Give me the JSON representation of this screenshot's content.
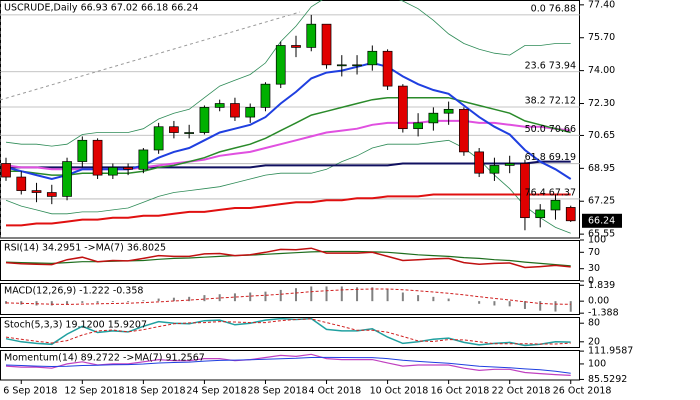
{
  "chart_data": [
    {
      "type": "candlestick",
      "title": "USCRUDE,Daily 66.93 67.02 66.18 66.24",
      "categories": [
        null,
        "6 Sep 2018",
        null,
        null,
        null,
        "12 Sep 2018",
        null,
        null,
        null,
        "18 Sep 2018",
        null,
        null,
        null,
        "24 Sep 2018",
        null,
        null,
        null,
        "28 Sep 2018",
        null,
        null,
        null,
        "4 Oct 2018",
        null,
        null,
        null,
        "10 Oct 2018",
        null,
        null,
        null,
        "16 Oct 2018",
        null,
        null,
        null,
        "22 Oct 2018",
        null,
        null,
        null,
        "26 Oct 2018"
      ],
      "open": [
        69.2,
        68.5,
        67.8,
        67.7,
        67.5,
        69.3,
        70.4,
        68.6,
        69.0,
        68.9,
        69.9,
        71.1,
        70.8,
        70.8,
        72.1,
        72.3,
        71.6,
        72.1,
        73.3,
        75.3,
        75.2,
        76.4,
        74.3,
        74.3,
        74.3,
        75.0,
        73.2,
        71.0,
        71.3,
        71.8,
        72.0,
        69.8,
        68.7,
        69.1,
        69.2,
        66.4,
        66.8,
        66.93
      ],
      "high": [
        69.5,
        68.8,
        68.2,
        68.1,
        69.5,
        70.6,
        70.5,
        69.2,
        69.2,
        70.0,
        71.3,
        71.4,
        71.2,
        72.2,
        72.5,
        72.6,
        72.3,
        73.4,
        75.5,
        75.8,
        76.88,
        76.3,
        74.8,
        74.8,
        75.3,
        75.1,
        73.3,
        71.8,
        72.1,
        72.4,
        72.1,
        70.0,
        69.5,
        69.6,
        69.4,
        67.1,
        67.6,
        67.02
      ],
      "low": [
        68.3,
        67.6,
        67.2,
        67.1,
        67.3,
        69.0,
        68.4,
        68.4,
        68.6,
        68.7,
        69.7,
        70.5,
        70.5,
        70.7,
        71.9,
        71.4,
        71.3,
        71.9,
        73.1,
        74.7,
        75.0,
        74.1,
        73.7,
        73.8,
        74.0,
        73.0,
        70.8,
        70.6,
        70.9,
        71.2,
        69.6,
        68.5,
        68.3,
        68.7,
        65.75,
        65.9,
        66.3,
        66.18
      ],
      "close": [
        68.5,
        67.8,
        67.7,
        67.5,
        69.3,
        70.4,
        68.6,
        69.0,
        68.9,
        69.9,
        71.1,
        70.8,
        70.8,
        72.1,
        72.3,
        71.6,
        72.1,
        73.3,
        75.3,
        75.2,
        76.4,
        74.3,
        74.3,
        74.3,
        75.0,
        73.2,
        71.0,
        71.3,
        71.8,
        72.0,
        69.8,
        68.7,
        69.1,
        69.2,
        66.4,
        66.8,
        67.3,
        66.24
      ],
      "up_color": "#00b000",
      "down_color": "#e00000",
      "series": [
        {
          "color": "#2e8b57",
          "width": 0.8,
          "values": [
            70.3,
            70.2,
            70.2,
            70.1,
            70.2,
            70.7,
            70.8,
            70.8,
            70.8,
            71.0,
            71.5,
            71.8,
            72.0,
            72.6,
            73.2,
            73.5,
            73.8,
            74.4,
            75.5,
            76.3,
            77.3,
            77.8,
            78.0,
            78.0,
            78.0,
            77.9,
            77.6,
            77.2,
            76.6,
            75.9,
            75.4,
            75.1,
            74.9,
            74.8,
            75.3,
            75.3,
            75.4,
            75.4
          ]
        },
        {
          "color": "#2e8b57",
          "width": 0.8,
          "values": [
            67.3,
            67.0,
            66.8,
            66.6,
            66.6,
            66.7,
            66.7,
            66.8,
            66.9,
            67.2,
            67.5,
            67.7,
            67.8,
            67.9,
            68.0,
            68.2,
            68.4,
            68.6,
            68.7,
            68.7,
            68.7,
            68.9,
            69.3,
            69.6,
            70.0,
            70.2,
            70.2,
            70.2,
            70.3,
            70.4,
            70.0,
            69.4,
            68.6,
            67.9,
            67.0,
            66.4,
            65.9,
            65.6
          ]
        },
        {
          "color": "#e01010",
          "width": 2,
          "values": [
            66.0,
            66.0,
            66.1,
            66.1,
            66.2,
            66.3,
            66.3,
            66.4,
            66.4,
            66.5,
            66.5,
            66.6,
            66.7,
            66.7,
            66.8,
            66.9,
            66.9,
            67.0,
            67.1,
            67.2,
            67.2,
            67.3,
            67.3,
            67.4,
            67.4,
            67.5,
            67.5,
            67.5,
            67.6,
            67.6,
            67.6,
            67.6,
            67.6,
            67.6,
            67.6,
            67.6,
            67.6,
            67.6
          ]
        },
        {
          "color": "#101060",
          "width": 2,
          "values": [
            69.0,
            69.0,
            69.0,
            69.0,
            69.0,
            69.0,
            69.0,
            69.0,
            69.0,
            69.0,
            69.0,
            69.0,
            69.0,
            69.0,
            69.0,
            69.0,
            69.0,
            69.1,
            69.1,
            69.1,
            69.1,
            69.1,
            69.1,
            69.1,
            69.1,
            69.1,
            69.2,
            69.2,
            69.2,
            69.2,
            69.2,
            69.2,
            69.2,
            69.2,
            69.2,
            69.3,
            69.3,
            69.3
          ]
        },
        {
          "color": "#e050e0",
          "width": 2,
          "values": [
            69.1,
            69.0,
            69.0,
            68.9,
            68.9,
            68.9,
            68.9,
            68.9,
            68.9,
            69.0,
            69.1,
            69.2,
            69.3,
            69.4,
            69.6,
            69.7,
            69.8,
            70.0,
            70.2,
            70.4,
            70.6,
            70.8,
            70.9,
            71.0,
            71.2,
            71.3,
            71.3,
            71.3,
            71.4,
            71.4,
            71.4,
            71.3,
            71.3,
            71.2,
            71.1,
            71.1,
            71.0,
            70.9
          ]
        },
        {
          "color": "#2a8a2a",
          "width": 1.5,
          "values": [
            68.8,
            68.8,
            68.7,
            68.6,
            68.6,
            68.7,
            68.7,
            68.7,
            68.7,
            68.8,
            69.0,
            69.1,
            69.3,
            69.5,
            69.8,
            70.0,
            70.2,
            70.5,
            70.9,
            71.3,
            71.7,
            71.9,
            72.1,
            72.3,
            72.5,
            72.6,
            72.6,
            72.6,
            72.6,
            72.6,
            72.4,
            72.2,
            72.0,
            71.8,
            71.4,
            71.2,
            71.0,
            70.8
          ]
        },
        {
          "color": "#1f3fe0",
          "width": 2,
          "values": [
            69.0,
            68.8,
            68.6,
            68.4,
            68.6,
            68.9,
            68.9,
            68.9,
            68.9,
            69.1,
            69.5,
            69.8,
            70.0,
            70.4,
            70.8,
            71.0,
            71.2,
            71.6,
            72.3,
            72.9,
            73.6,
            73.9,
            74.0,
            74.2,
            74.4,
            74.2,
            73.7,
            73.3,
            73.0,
            72.8,
            72.2,
            71.6,
            71.1,
            70.7,
            69.9,
            69.3,
            68.9,
            68.4
          ]
        }
      ],
      "fib_levels": [
        {
          "label": "0.0 76.88",
          "value": 76.88
        },
        {
          "label": "23.6 73.94",
          "value": 73.94
        },
        {
          "label": "38.2 72.12",
          "value": 72.12
        },
        {
          "label": "50.0 70.66",
          "value": 70.66
        },
        {
          "label": "61.8 69.19",
          "value": 69.19
        },
        {
          "label": "76.4 67.37",
          "value": 67.37
        }
      ],
      "last_price": 66.24,
      "ylim": [
        65.35,
        77.65
      ],
      "yticks": [
        {
          "value": 77.4,
          "label": "77.40"
        },
        {
          "value": 75.7,
          "label": "75.70"
        },
        {
          "value": 74,
          "label": "74.00"
        },
        {
          "value": 72.3,
          "label": "72.30"
        },
        70.65,
        68.95,
        67.25,
        65.55
      ]
    },
    {
      "type": "line",
      "title": "RSI(14) 34.2951 ->MA(7) 36.8025",
      "ylim": [
        0,
        100
      ],
      "yticks": [
        100,
        70,
        30,
        0
      ],
      "series": [
        {
          "color": "#1e6e1e",
          "width": 1.2,
          "values": [
            46,
            45,
            44,
            43,
            45,
            47,
            47,
            48,
            49,
            50,
            53,
            55,
            56,
            58,
            60,
            62,
            63,
            65,
            67,
            69,
            71,
            72,
            72,
            72,
            71,
            70,
            67,
            64,
            62,
            60,
            57,
            55,
            52,
            50,
            46,
            43,
            40,
            36.8
          ]
        },
        {
          "color": "#c01010",
          "width": 1.5,
          "values": [
            45,
            42,
            41,
            40,
            52,
            58,
            47,
            50,
            49,
            55,
            62,
            60,
            60,
            66,
            67,
            62,
            64,
            70,
            77,
            76,
            80,
            68,
            68,
            68,
            70,
            60,
            50,
            52,
            54,
            55,
            45,
            41,
            43,
            44,
            33,
            35,
            38,
            34.3
          ]
        }
      ]
    },
    {
      "type": "line",
      "title": "MACD(12,26,9) -1.222 -0.358",
      "ylim": [
        -1.6,
        2.1
      ],
      "yticks": [
        1.839,
        {
          "value": 0,
          "label": "0.00"
        },
        -1.388
      ],
      "series": [
        {
          "color": "#808080",
          "width": 2,
          "style": "bar",
          "values": [
            -0.3,
            -0.4,
            -0.5,
            -0.5,
            -0.4,
            -0.2,
            -0.2,
            -0.1,
            -0.1,
            0.1,
            0.3,
            0.4,
            0.5,
            0.7,
            0.8,
            0.9,
            1.0,
            1.1,
            1.3,
            1.5,
            1.7,
            1.7,
            1.7,
            1.6,
            1.6,
            1.4,
            1.0,
            0.7,
            0.5,
            0.3,
            0.0,
            -0.3,
            -0.5,
            -0.6,
            -0.9,
            -1.1,
            -1.2,
            -1.222
          ]
        },
        {
          "color": "#d02020",
          "width": 1,
          "style": "dashed",
          "values": [
            -0.2,
            -0.25,
            -0.3,
            -0.35,
            -0.37,
            -0.34,
            -0.31,
            -0.27,
            -0.24,
            -0.17,
            -0.08,
            0.02,
            0.12,
            0.24,
            0.36,
            0.47,
            0.58,
            0.68,
            0.8,
            0.94,
            1.09,
            1.21,
            1.3,
            1.36,
            1.41,
            1.41,
            1.33,
            1.2,
            1.06,
            0.91,
            0.73,
            0.52,
            0.32,
            0.14,
            -0.07,
            -0.27,
            -0.34,
            -0.358
          ]
        }
      ]
    },
    {
      "type": "line",
      "title": "Stoch(5,3,3) 19.1200 15.9207",
      "ylim": [
        0,
        100
      ],
      "yticks": [
        80,
        20
      ],
      "series": [
        {
          "color": "#20a0a0",
          "width": 1.5,
          "values": [
            30,
            20,
            15,
            12,
            45,
            70,
            50,
            55,
            52,
            70,
            85,
            80,
            78,
            88,
            90,
            75,
            80,
            90,
            95,
            92,
            95,
            60,
            55,
            55,
            62,
            35,
            15,
            20,
            28,
            32,
            18,
            10,
            15,
            18,
            8,
            12,
            20,
            19.12
          ]
        },
        {
          "color": "#d02020",
          "width": 1,
          "style": "dashed",
          "values": [
            35,
            28,
            22,
            16,
            24,
            42,
            55,
            58,
            52,
            59,
            69,
            78,
            81,
            82,
            85,
            84,
            82,
            82,
            88,
            92,
            94,
            82,
            70,
            57,
            57,
            51,
            37,
            23,
            21,
            27,
            26,
            20,
            14,
            14,
            14,
            13,
            13,
            15.92
          ]
        }
      ]
    },
    {
      "type": "line",
      "title": "Momentum(14) 89.2722 ->MA(7) 91.2567",
      "ylim": [
        85,
        113
      ],
      "yticks": [
        111.9587,
        100,
        85.5292
      ],
      "series": [
        {
          "color": "#c040c0",
          "width": 1.2,
          "values": [
            98,
            97,
            97,
            96,
            100,
            102,
            99,
            100,
            100,
            102,
            104,
            103,
            103,
            105,
            105,
            103,
            104,
            106,
            108,
            107,
            109,
            105,
            104,
            104,
            104,
            101,
            98,
            99,
            99,
            99,
            96,
            94,
            95,
            95,
            92,
            91,
            90,
            89.27
          ]
        },
        {
          "color": "#1f3fe0",
          "width": 1,
          "values": [
            99,
            98.5,
            98,
            97.6,
            97.8,
            98.5,
            98.7,
            99.2,
            99.4,
            99.9,
            100.9,
            101.3,
            101.7,
            102.6,
            103.3,
            103.6,
            103.9,
            104.3,
            104.9,
            105.3,
            106,
            106.1,
            106,
            105.9,
            105.9,
            105,
            103.5,
            102.4,
            101.4,
            100.6,
            99.3,
            97.9,
            97.1,
            96.4,
            95.4,
            94.5,
            93.1,
            91.26
          ]
        }
      ]
    }
  ]
}
